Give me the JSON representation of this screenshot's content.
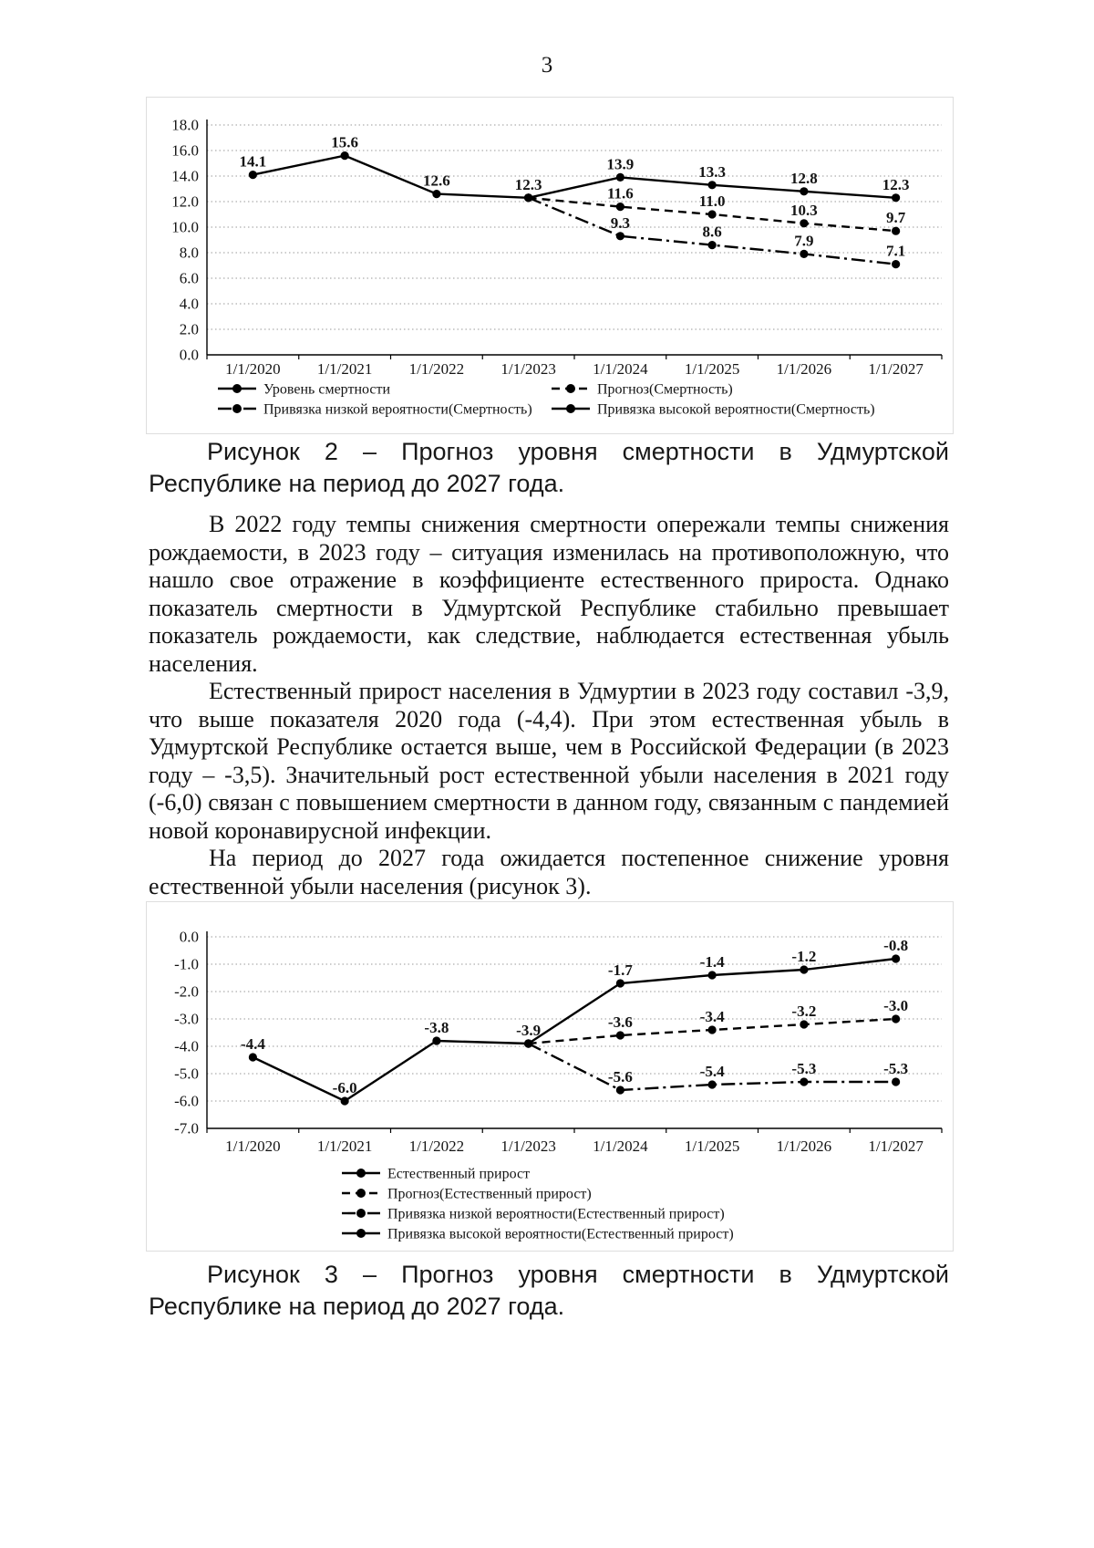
{
  "page": {
    "number": "3"
  },
  "figure2": {
    "caption": "Рисунок 2 – Прогноз уровня смертности в Удмуртской Республике на период до 2027 года."
  },
  "figure3": {
    "caption": "Рисунок 3 – Прогноз уровня смертности в Удмуртской Республике на период до 2027 года."
  },
  "paragraphs": [
    "В 2022 году темпы снижения смертности опережали темпы снижения рождаемости, в 2023 году – ситуация изменилась на противоположную, что нашло свое отражение в коэффициенте естественного прироста. Однако показатель смертности в Удмуртской Республике стабильно превышает показатель рождаемости, как следствие, наблюдается естественная убыль населения.",
    "Естественный прирост населения в Удмуртии в 2023 году составил -3,9, что выше показателя 2020 года (-4,4). При этом естественная убыль в Удмуртской Республике остается выше, чем в Российской Федерации (в 2023 году – -3,5). Значительный рост естественной убыли населения в 2021 году (-6,0) связан с повышением смертности в данном году, связанным с пандемией новой коронавирусной инфекции.",
    "На период до 2027 года ожидается постепенное снижение уровня естественной убыли населения (рисунок 3)."
  ],
  "chart_data": [
    {
      "type": "line",
      "title": "",
      "xlabel": "",
      "ylabel": "",
      "x": [
        "1/1/2020",
        "1/1/2021",
        "1/1/2022",
        "1/1/2023",
        "1/1/2024",
        "1/1/2025",
        "1/1/2026",
        "1/1/2027"
      ],
      "ylim": [
        0,
        18
      ],
      "ystep": 2,
      "grid": "dotted-horizontal",
      "legend_position": "bottom",
      "series": [
        {
          "name": "Уровень смертности",
          "style": "solid",
          "values": [
            14.1,
            15.6,
            12.6,
            12.3,
            null,
            null,
            null,
            null
          ],
          "labels": [
            "14.1",
            "15.6",
            "12.6",
            "12.3",
            null,
            null,
            null,
            null
          ]
        },
        {
          "name": "Прогноз(Смертность)",
          "style": "dashed",
          "values": [
            null,
            null,
            null,
            12.3,
            11.6,
            11.0,
            10.3,
            9.7
          ],
          "labels": [
            null,
            null,
            null,
            null,
            "11.6",
            "11.0",
            "10.3",
            "9.7"
          ]
        },
        {
          "name": "Привязка низкой вероятности(Смертность)",
          "style": "dashdot",
          "values": [
            null,
            null,
            null,
            12.3,
            9.3,
            8.6,
            7.9,
            7.1
          ],
          "labels": [
            null,
            null,
            null,
            null,
            "9.3",
            "8.6",
            "7.9",
            "7.1"
          ]
        },
        {
          "name": "Привязка высокой вероятности(Смертность)",
          "style": "solid",
          "values": [
            null,
            null,
            null,
            12.3,
            13.9,
            13.3,
            12.8,
            12.3
          ],
          "labels": [
            null,
            null,
            null,
            null,
            "13.9",
            "13.3",
            "12.8",
            "12.3"
          ]
        }
      ]
    },
    {
      "type": "line",
      "title": "",
      "xlabel": "",
      "ylabel": "",
      "x": [
        "1/1/2020",
        "1/1/2021",
        "1/1/2022",
        "1/1/2023",
        "1/1/2024",
        "1/1/2025",
        "1/1/2026",
        "1/1/2027"
      ],
      "ylim": [
        -7,
        0
      ],
      "ystep": 1,
      "grid": "dotted-horizontal",
      "legend_position": "bottom",
      "series": [
        {
          "name": "Естественный прирост",
          "style": "solid",
          "values": [
            -4.4,
            -6.0,
            -3.8,
            -3.9,
            null,
            null,
            null,
            null
          ],
          "labels": [
            "-4.4",
            "-6.0",
            "-3.8",
            "-3.9",
            null,
            null,
            null,
            null
          ]
        },
        {
          "name": "Прогноз(Естественный прирост)",
          "style": "dashed",
          "values": [
            null,
            null,
            null,
            -3.9,
            -3.6,
            -3.4,
            -3.2,
            -3.0
          ],
          "labels": [
            null,
            null,
            null,
            null,
            "-3.6",
            "-3.4",
            "-3.2",
            "-3.0"
          ]
        },
        {
          "name": "Привязка низкой вероятности(Естественный прирост)",
          "style": "dashdot",
          "values": [
            null,
            null,
            null,
            -3.9,
            -5.6,
            -5.4,
            -5.3,
            -5.3
          ],
          "labels": [
            null,
            null,
            null,
            null,
            "-5.6",
            "-5.4",
            "-5.3",
            "-5.3"
          ]
        },
        {
          "name": "Привязка высокой вероятности(Естественный прирост)",
          "style": "solid",
          "values": [
            null,
            null,
            null,
            -3.9,
            -1.7,
            -1.4,
            -1.2,
            -0.8
          ],
          "labels": [
            null,
            null,
            null,
            null,
            "-1.7",
            "-1.4",
            "-1.2",
            "-0.8"
          ]
        }
      ]
    }
  ]
}
